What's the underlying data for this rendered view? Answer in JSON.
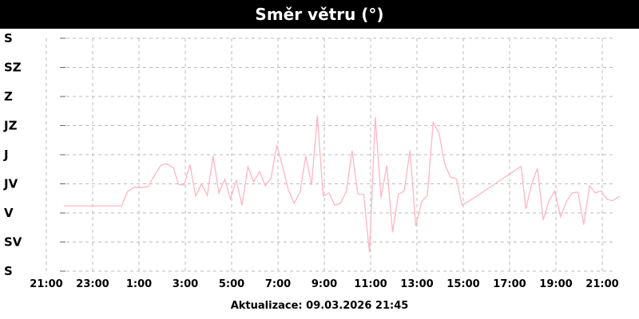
{
  "header": {
    "title": "Směr větru (°)"
  },
  "footer": {
    "updated_label": "Aktualizace: 09.03.2026 21:45"
  },
  "colors": {
    "line": "#ffb6c1",
    "grid": "#bbbbbb",
    "title_bg": "#000000",
    "title_fg": "#ffffff"
  },
  "chart_data": {
    "type": "line",
    "title": "Směr větru (°)",
    "ylim": [
      0,
      360
    ],
    "y_ticks": [
      {
        "value": 360,
        "label": "S"
      },
      {
        "value": 315,
        "label": "SZ"
      },
      {
        "value": 270,
        "label": "Z"
      },
      {
        "value": 225,
        "label": "JZ"
      },
      {
        "value": 180,
        "label": "J"
      },
      {
        "value": 135,
        "label": "JV"
      },
      {
        "value": 90,
        "label": "V"
      },
      {
        "value": 45,
        "label": "SV"
      },
      {
        "value": 0,
        "label": "S"
      }
    ],
    "xlim": [
      -3.0,
      21.75
    ],
    "x_ticks": [
      {
        "value": -3,
        "label": "21:00"
      },
      {
        "value": -1,
        "label": "23:00"
      },
      {
        "value": 1,
        "label": "1:00"
      },
      {
        "value": 3,
        "label": "3:00"
      },
      {
        "value": 5,
        "label": "5:00"
      },
      {
        "value": 7,
        "label": "7:00"
      },
      {
        "value": 9,
        "label": "9:00"
      },
      {
        "value": 11,
        "label": "11:00"
      },
      {
        "value": 13,
        "label": "13:00"
      },
      {
        "value": 15,
        "label": "15:00"
      },
      {
        "value": 17,
        "label": "17:00"
      },
      {
        "value": 19,
        "label": "19:00"
      },
      {
        "value": 21,
        "label": "21:00"
      }
    ],
    "grid": true,
    "series": [
      {
        "x": [
          -2.25,
          0.25,
          0.5,
          0.8,
          1.1,
          1.4,
          1.7,
          1.95,
          2.2,
          2.5,
          2.7,
          2.95,
          3.2,
          3.45,
          3.7,
          3.95,
          4.2,
          4.45,
          4.7,
          4.95,
          5.2,
          5.45,
          5.7,
          5.95,
          6.2,
          6.45,
          6.7,
          6.95,
          7.2,
          7.45,
          7.7,
          7.95,
          8.2,
          8.45,
          8.7,
          8.95,
          9.2,
          9.45,
          9.7,
          9.95,
          10.2,
          10.45,
          10.7,
          10.95,
          11.2,
          11.45,
          11.7,
          11.95,
          12.2,
          12.45,
          12.7,
          12.95,
          13.2,
          13.45,
          13.7,
          13.95,
          14.2,
          14.45,
          14.7,
          14.95,
          15.2,
          17.5,
          17.7,
          17.95,
          18.2,
          18.45,
          18.7,
          18.95,
          19.2,
          19.45,
          19.7,
          19.95,
          20.2,
          20.45,
          20.7,
          20.95,
          21.2,
          21.45,
          21.75
        ],
        "y": [
          101,
          101,
          123,
          130,
          129,
          131,
          150,
          164,
          166,
          159,
          134,
          133,
          165,
          116,
          135,
          117,
          178,
          121,
          142,
          112,
          140,
          102,
          161,
          138,
          154,
          132,
          144,
          195,
          161,
          125,
          105,
          122,
          178,
          133,
          241,
          116,
          121,
          102,
          105,
          123,
          186,
          119,
          119,
          29,
          238,
          114,
          163,
          60,
          119,
          124,
          187,
          70,
          107,
          117,
          230,
          214,
          166,
          145,
          143,
          102,
          107,
          162,
          96,
          134,
          159,
          79,
          109,
          124,
          84,
          107,
          121,
          122,
          72,
          132,
          121,
          124,
          111,
          109,
          116
        ]
      }
    ]
  }
}
